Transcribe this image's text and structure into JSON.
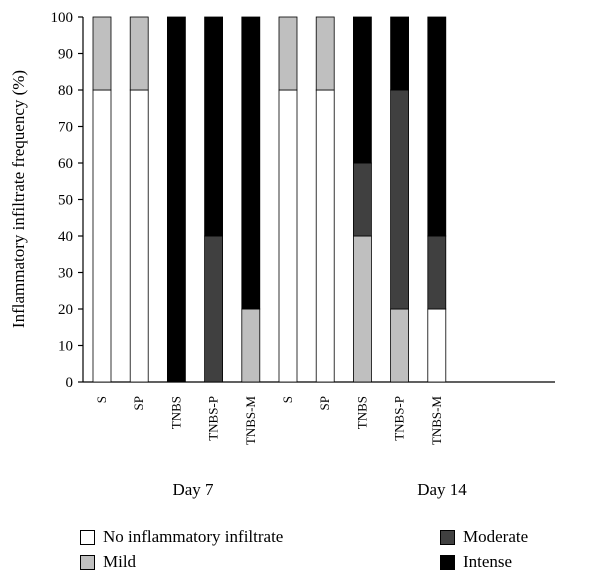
{
  "chart_data": {
    "type": "bar",
    "stacked": true,
    "ylabel": "Inflammatory infiltrate frequency (%)",
    "ylim": [
      0,
      100
    ],
    "yticks": [
      0,
      10,
      20,
      30,
      40,
      50,
      60,
      70,
      80,
      90,
      100
    ],
    "categories": [
      "S",
      "SP",
      "TNBS",
      "TNBS-P",
      "TNBS-M",
      "S",
      "SP",
      "TNBS",
      "TNBS-P",
      "TNBS-M"
    ],
    "groups": [
      {
        "label": "Day 7",
        "categories": [
          "S",
          "SP",
          "TNBS",
          "TNBS-P",
          "TNBS-M"
        ]
      },
      {
        "label": "Day 14",
        "categories": [
          "S",
          "SP",
          "TNBS",
          "TNBS-P",
          "TNBS-M"
        ]
      }
    ],
    "series": [
      {
        "name": "No inflammatory infiltrate",
        "color": "#ffffff",
        "values": [
          80,
          80,
          0,
          0,
          0,
          80,
          80,
          0,
          0,
          20
        ]
      },
      {
        "name": "Mild",
        "color": "#bfbfbf",
        "values": [
          20,
          20,
          0,
          0,
          20,
          20,
          20,
          40,
          20,
          0
        ]
      },
      {
        "name": "Moderate",
        "color": "#404040",
        "values": [
          0,
          0,
          0,
          40,
          0,
          0,
          0,
          20,
          60,
          20
        ]
      },
      {
        "name": "Intense",
        "color": "#000000",
        "values": [
          0,
          0,
          100,
          60,
          80,
          0,
          0,
          40,
          20,
          60
        ]
      }
    ],
    "legend_position": "bottom"
  }
}
